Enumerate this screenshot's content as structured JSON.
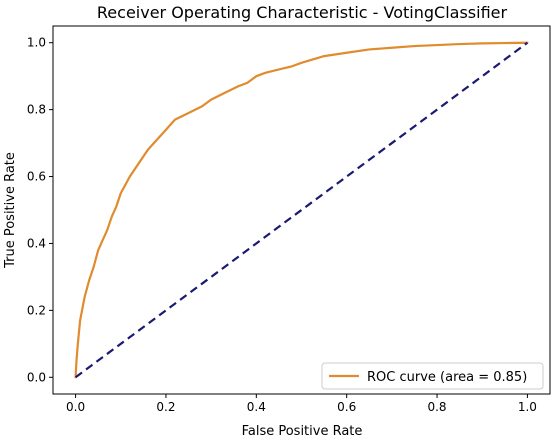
{
  "chart_data": {
    "type": "line",
    "title": "Receiver Operating Characteristic - VotingClassifier",
    "xlabel": "False Positive Rate",
    "ylabel": "True Positive Rate",
    "xlim": [
      -0.05,
      1.05
    ],
    "ylim": [
      -0.05,
      1.05
    ],
    "xticks": [
      0.0,
      0.2,
      0.4,
      0.6,
      0.8,
      1.0
    ],
    "yticks": [
      0.0,
      0.2,
      0.4,
      0.6,
      0.8,
      1.0
    ],
    "xtick_labels": [
      "0.0",
      "0.2",
      "0.4",
      "0.6",
      "0.8",
      "1.0"
    ],
    "ytick_labels": [
      "0.0",
      "0.2",
      "0.4",
      "0.6",
      "0.8",
      "1.0"
    ],
    "grid": false,
    "legend_position": "lower-right",
    "series": [
      {
        "name": "ROC curve (area = 0.85)",
        "color": "#e08b2e",
        "style": "solid",
        "x": [
          0.0,
          0.002,
          0.005,
          0.01,
          0.02,
          0.03,
          0.04,
          0.05,
          0.06,
          0.07,
          0.08,
          0.09,
          0.1,
          0.12,
          0.14,
          0.16,
          0.18,
          0.2,
          0.22,
          0.25,
          0.28,
          0.3,
          0.33,
          0.36,
          0.38,
          0.4,
          0.42,
          0.45,
          0.48,
          0.5,
          0.55,
          0.6,
          0.65,
          0.7,
          0.75,
          0.8,
          0.85,
          0.9,
          0.95,
          1.0
        ],
        "y": [
          0.0,
          0.05,
          0.1,
          0.17,
          0.24,
          0.29,
          0.33,
          0.38,
          0.41,
          0.44,
          0.48,
          0.51,
          0.55,
          0.6,
          0.64,
          0.68,
          0.71,
          0.74,
          0.77,
          0.79,
          0.81,
          0.83,
          0.85,
          0.87,
          0.88,
          0.9,
          0.91,
          0.92,
          0.93,
          0.94,
          0.96,
          0.97,
          0.98,
          0.985,
          0.99,
          0.993,
          0.996,
          0.998,
          0.999,
          1.0
        ]
      },
      {
        "name": "",
        "color": "#1a1a72",
        "style": "dashed",
        "x": [
          0.0,
          1.0
        ],
        "y": [
          0.0,
          1.0
        ]
      }
    ]
  }
}
